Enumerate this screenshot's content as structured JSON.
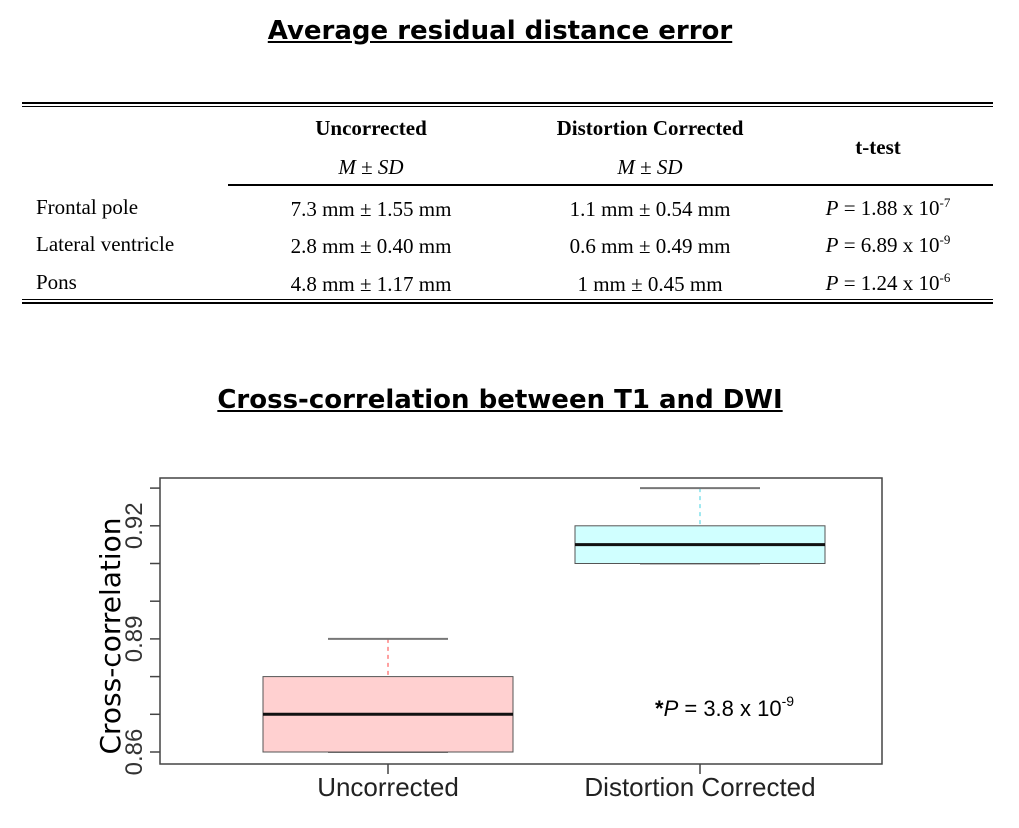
{
  "table": {
    "title": "Average residual distance error",
    "columns": [
      {
        "label": "Uncorrected",
        "sub_m": "M",
        "sub_pm": " ± ",
        "sub_sd": "SD"
      },
      {
        "label": "Distortion Corrected",
        "sub_m": "M",
        "sub_pm": " ± ",
        "sub_sd": "SD"
      },
      {
        "label": "t-test"
      }
    ],
    "rows": [
      {
        "label": "Frontal pole",
        "uncorrected": "7.3 mm ± 1.55 mm",
        "corrected": "1.1 mm ± 0.54 mm",
        "p_prefix": "P",
        "p_value": " = 1.88 x 10",
        "p_exp": "-7"
      },
      {
        "label": "Lateral ventricle",
        "uncorrected": "2.8 mm ± 0.40 mm",
        "corrected": "0.6 mm ± 0.49 mm",
        "p_prefix": "P",
        "p_value": " = 6.89 x 10",
        "p_exp": "-9"
      },
      {
        "label": "Pons",
        "uncorrected": "4.8 mm ± 1.17 mm",
        "corrected": "1 mm ± 0.45 mm",
        "p_prefix": "P",
        "p_value": " = 1.24 x 10",
        "p_exp": "-6"
      }
    ]
  },
  "chart_data": {
    "type": "boxplot",
    "title": "Cross-correlation between T1 and DWI",
    "xlabel": "",
    "ylabel": "Cross-correlation",
    "ylim": [
      0.857,
      0.933
    ],
    "yticks": [
      0.86,
      0.87,
      0.88,
      0.89,
      0.9,
      0.91,
      0.92,
      0.93
    ],
    "ytick_labels": [
      "0.86",
      "0.89",
      "0.92"
    ],
    "categories": [
      "Uncorrected",
      "Distortion Corrected"
    ],
    "series": [
      {
        "name": "Uncorrected",
        "min": 0.86,
        "q1": 0.86,
        "median": 0.87,
        "q3": 0.88,
        "max": 0.89,
        "fill": "#ffd0d0",
        "whisker_color": "#ff4040"
      },
      {
        "name": "Distortion Corrected",
        "min": 0.91,
        "q1": 0.91,
        "median": 0.915,
        "q3": 0.92,
        "max": 0.93,
        "fill": "#d0ffff",
        "whisker_color": "#40d0e0"
      }
    ],
    "annotation": {
      "star": "*",
      "prefix": "P",
      "text": " = 3.8 x 10",
      "exp": "-9"
    }
  }
}
